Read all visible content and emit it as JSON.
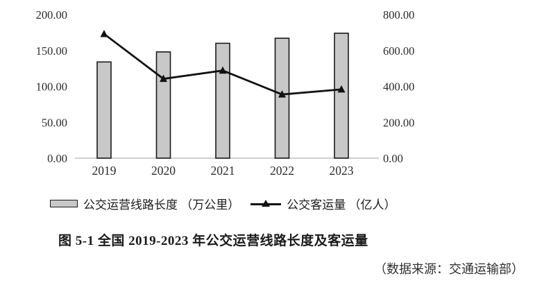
{
  "chart_data": {
    "type": "bar",
    "subtype": "bar+line combo, dual y-axis",
    "categories": [
      "2019",
      "2020",
      "2021",
      "2022",
      "2023"
    ],
    "series": [
      {
        "name": "公交运营线路长度 （万公里）",
        "type": "bar",
        "axis": "left",
        "values": [
          134,
          148,
          160,
          167,
          174
        ],
        "fill_color": "#c8c8c8",
        "border_color": "#1a1a1a"
      },
      {
        "name": "公交客运量 （亿人）",
        "type": "line",
        "axis": "right",
        "values": [
          692,
          442,
          488,
          355,
          383
        ],
        "color": "#111111",
        "marker": "filled-triangle-up"
      }
    ],
    "title": "图 5-1 全国 2019-2023 年公交运营线路长度及客运量",
    "xlabel": "",
    "ylabel_left": "万公里",
    "ylabel_right": "亿人",
    "left_axis": {
      "min": 0,
      "max": 200,
      "tick_labels": [
        "200.00",
        "150.00",
        "100.00",
        "50.00",
        "0.00"
      ]
    },
    "right_axis": {
      "min": 0,
      "max": 800,
      "tick_labels": [
        "800.00",
        "600.00",
        "400.00",
        "200.00",
        "0.00"
      ]
    },
    "grid": false,
    "legend_position": "bottom",
    "axis_line_color": "#bfbfbf"
  },
  "legend": {
    "items": [
      {
        "label": "公交运营线路长度 （万公里）",
        "swatch": "gray-bar"
      },
      {
        "label": "公交客运量 （亿人）",
        "swatch": "black-line-triangle"
      }
    ]
  },
  "caption": "图 5-1  全国 2019-2023 年公交运营线路长度及客运量",
  "source": "（数据来源：交通运输部）"
}
